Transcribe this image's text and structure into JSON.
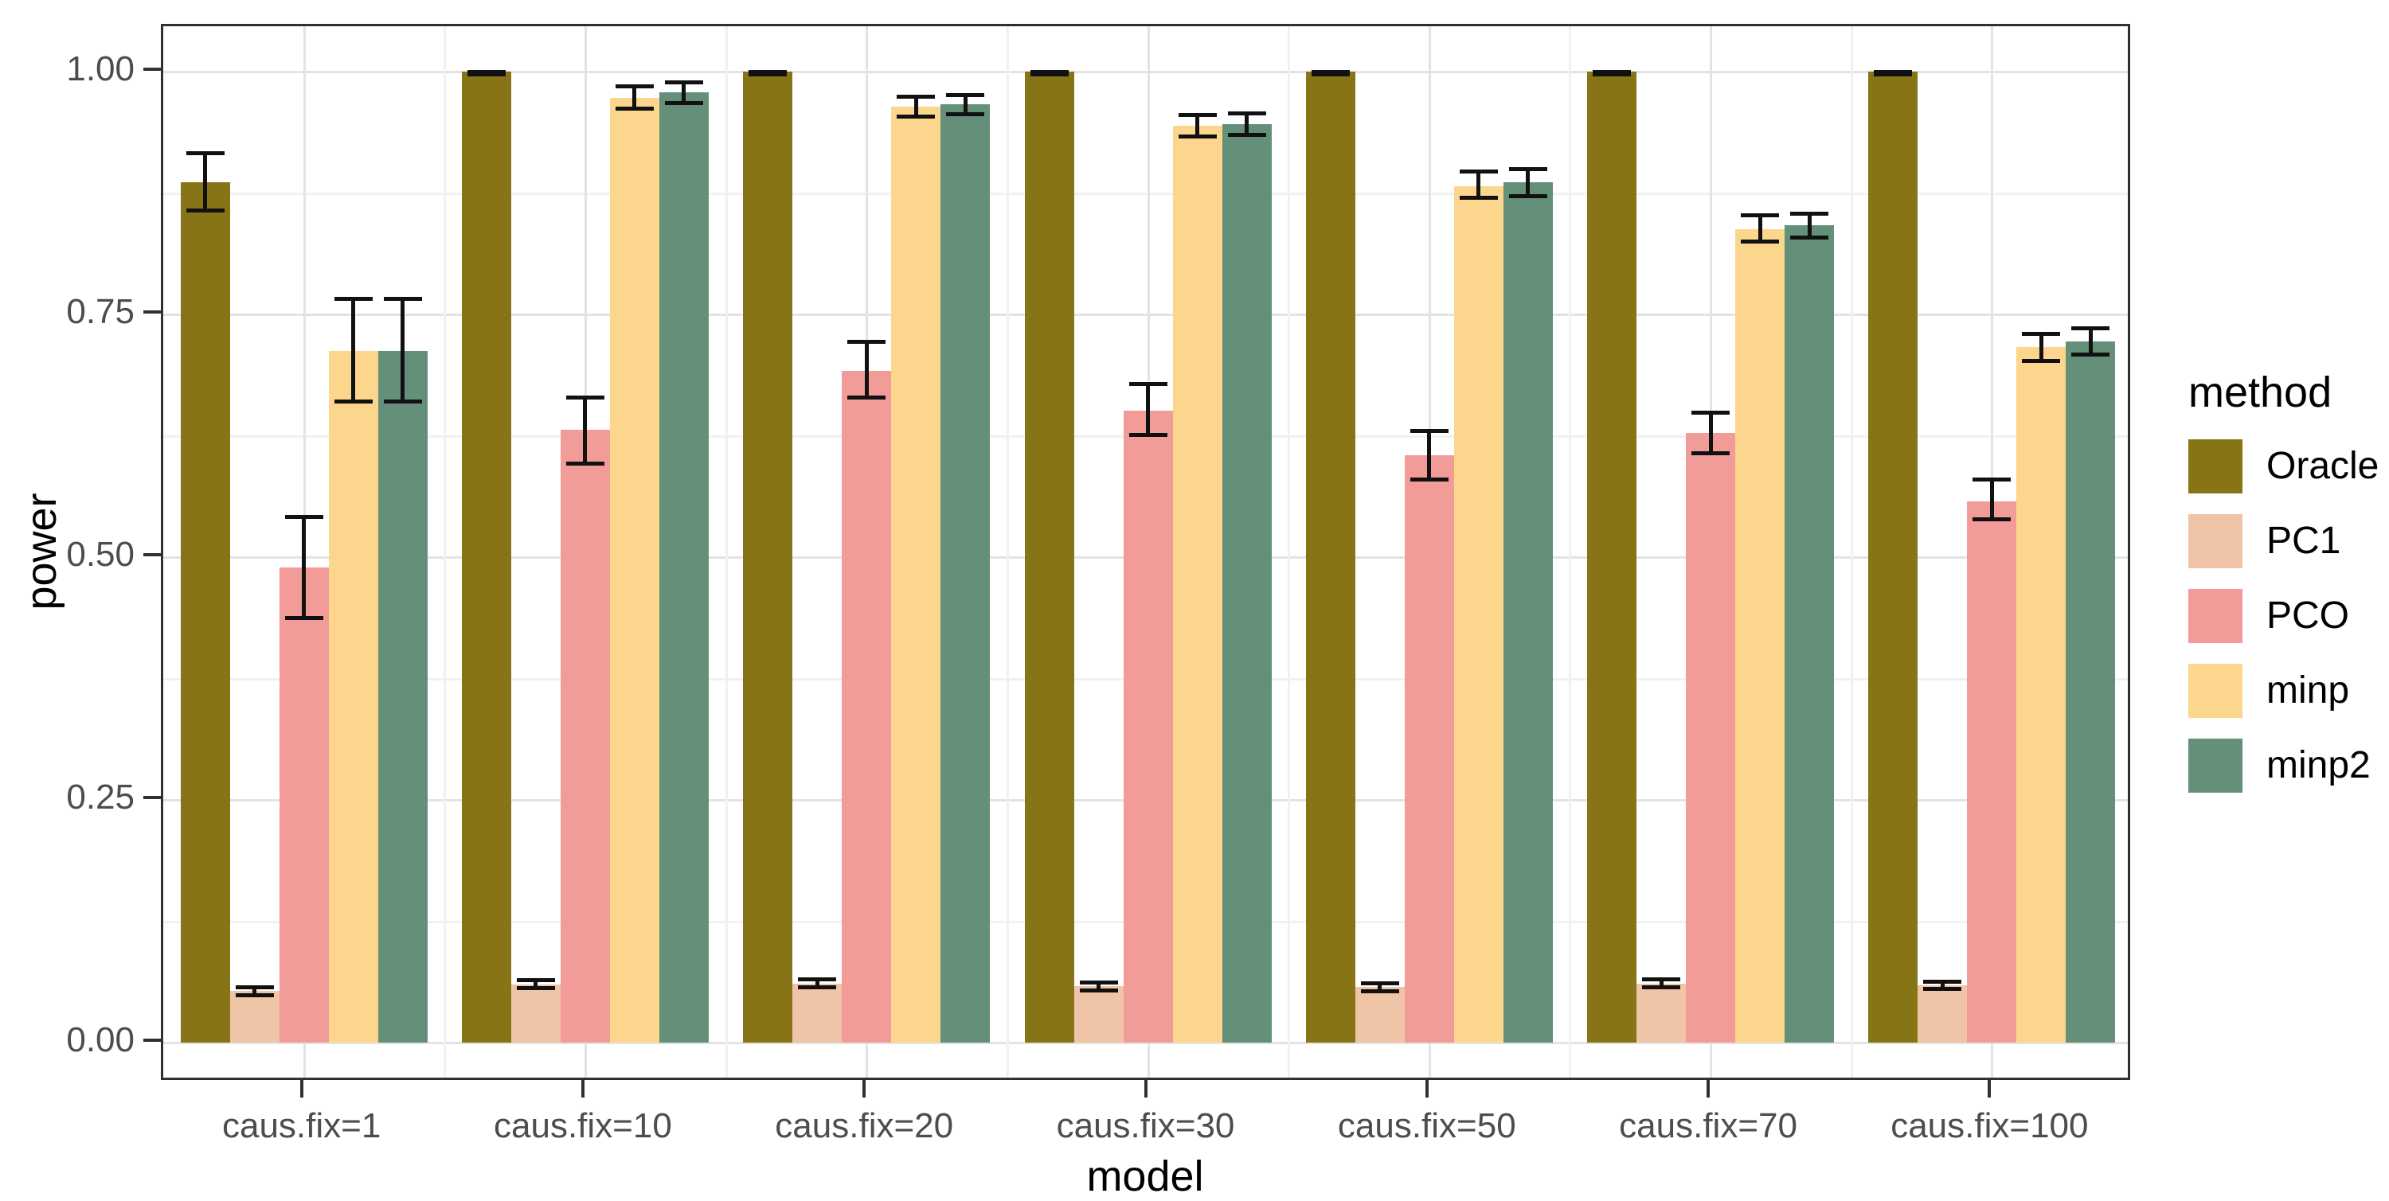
{
  "figure": {
    "background": "#ffffff"
  },
  "panel": {
    "border_color": "#303030",
    "grid_major_color": "#e3e3e3",
    "grid_minor_color": "#f1f1f1",
    "tick_color": "#303030",
    "tick_label_color": "#4d4d4d",
    "errorbar_color": "#111111"
  },
  "chart_data": {
    "type": "bar",
    "title": "",
    "xlabel": "model",
    "ylabel": "power",
    "categories": [
      "caus.fix=1",
      "caus.fix=10",
      "caus.fix=20",
      "caus.fix=30",
      "caus.fix=50",
      "caus.fix=70",
      "caus.fix=100"
    ],
    "y_ticks": [
      {
        "value": 0.0,
        "label": "0.00"
      },
      {
        "value": 0.25,
        "label": "0.25"
      },
      {
        "value": 0.5,
        "label": "0.50"
      },
      {
        "value": 0.75,
        "label": "0.75"
      },
      {
        "value": 1.0,
        "label": "1.00"
      }
    ],
    "y_minor_ticks": [
      0.125,
      0.375,
      0.625,
      0.875
    ],
    "ylim": [
      -0.04,
      1.05
    ],
    "grid": "major+minor",
    "legend": {
      "title": "method",
      "position": "right"
    },
    "series": [
      {
        "name": "Oracle",
        "color": "#877416",
        "values": [
          0.886,
          1.0,
          1.0,
          1.0,
          1.0,
          1.0,
          1.0
        ],
        "err_low": [
          0.857,
          0.997,
          0.997,
          0.997,
          0.997,
          0.997,
          0.997
        ],
        "err_high": [
          0.916,
          1.0,
          1.0,
          1.0,
          1.0,
          1.0,
          1.0
        ]
      },
      {
        "name": "PC1",
        "color": "#f0c4a6",
        "values": [
          0.053,
          0.06,
          0.061,
          0.058,
          0.057,
          0.061,
          0.059
        ],
        "err_low": [
          0.049,
          0.056,
          0.057,
          0.054,
          0.053,
          0.057,
          0.055
        ],
        "err_high": [
          0.057,
          0.064,
          0.065,
          0.062,
          0.061,
          0.065,
          0.063
        ]
      },
      {
        "name": "PCO",
        "color": "#f29c9a",
        "values": [
          0.489,
          0.631,
          0.692,
          0.651,
          0.605,
          0.628,
          0.557
        ],
        "err_low": [
          0.437,
          0.596,
          0.664,
          0.626,
          0.58,
          0.607,
          0.539
        ],
        "err_high": [
          0.541,
          0.664,
          0.722,
          0.678,
          0.63,
          0.649,
          0.58
        ]
      },
      {
        "name": "minp",
        "color": "#fbd68c",
        "values": [
          0.712,
          0.973,
          0.964,
          0.944,
          0.882,
          0.838,
          0.716
        ],
        "err_low": [
          0.66,
          0.962,
          0.954,
          0.933,
          0.87,
          0.825,
          0.702
        ],
        "err_high": [
          0.766,
          0.985,
          0.974,
          0.955,
          0.897,
          0.852,
          0.73
        ]
      },
      {
        "name": "minp2",
        "color": "#649079",
        "values": [
          0.712,
          0.979,
          0.966,
          0.946,
          0.886,
          0.842,
          0.722
        ],
        "err_low": [
          0.66,
          0.968,
          0.956,
          0.935,
          0.872,
          0.829,
          0.709
        ],
        "err_high": [
          0.766,
          0.989,
          0.976,
          0.957,
          0.9,
          0.854,
          0.736
        ]
      }
    ]
  }
}
